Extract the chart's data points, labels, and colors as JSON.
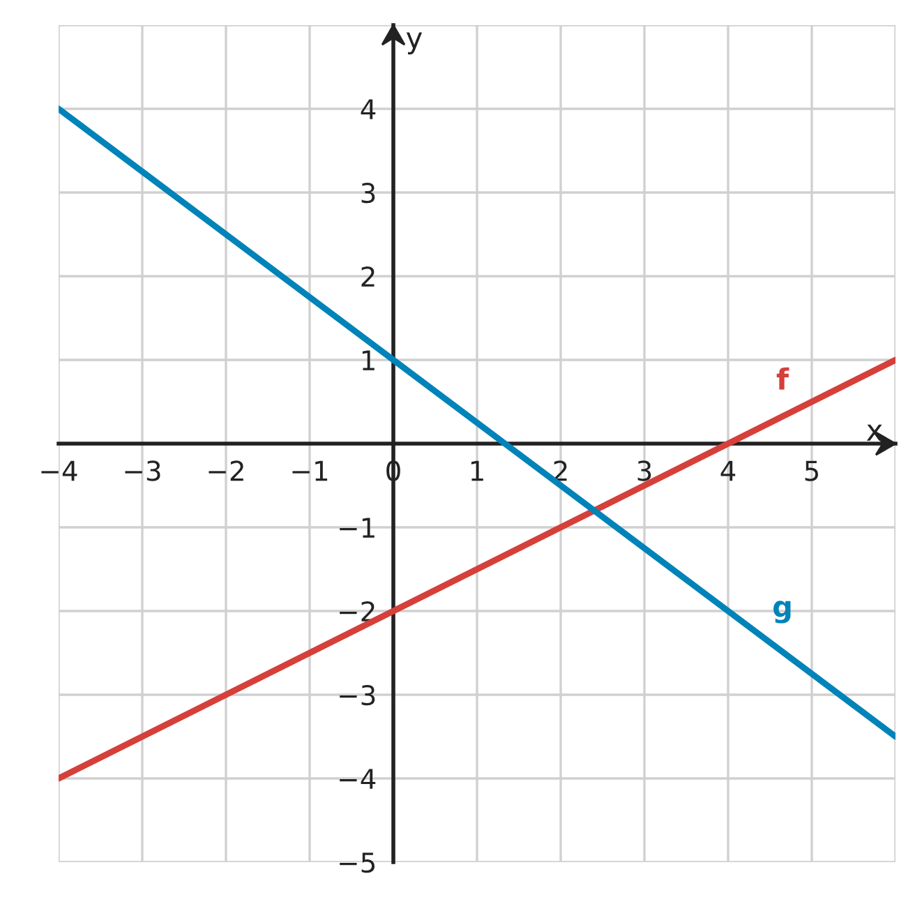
{
  "chart_data": {
    "type": "line",
    "xlabel": "x",
    "ylabel": "y",
    "x": [
      -4,
      6
    ],
    "series": [
      {
        "name": "f",
        "color": "#d63f3a",
        "values": [
          -4,
          1
        ]
      },
      {
        "name": "g",
        "color": "#0083b8",
        "values": [
          4,
          -3.5
        ]
      }
    ],
    "xlim": [
      -4,
      6
    ],
    "ylim": [
      -5,
      5
    ],
    "xticks": [
      -4,
      -3,
      -2,
      -1,
      0,
      1,
      2,
      3,
      4,
      5
    ],
    "yticks": [
      -5,
      -4,
      -3,
      -2,
      -1,
      1,
      2,
      3,
      4
    ],
    "grid": true,
    "legend": false,
    "marker": "none",
    "line_style": "solid"
  }
}
